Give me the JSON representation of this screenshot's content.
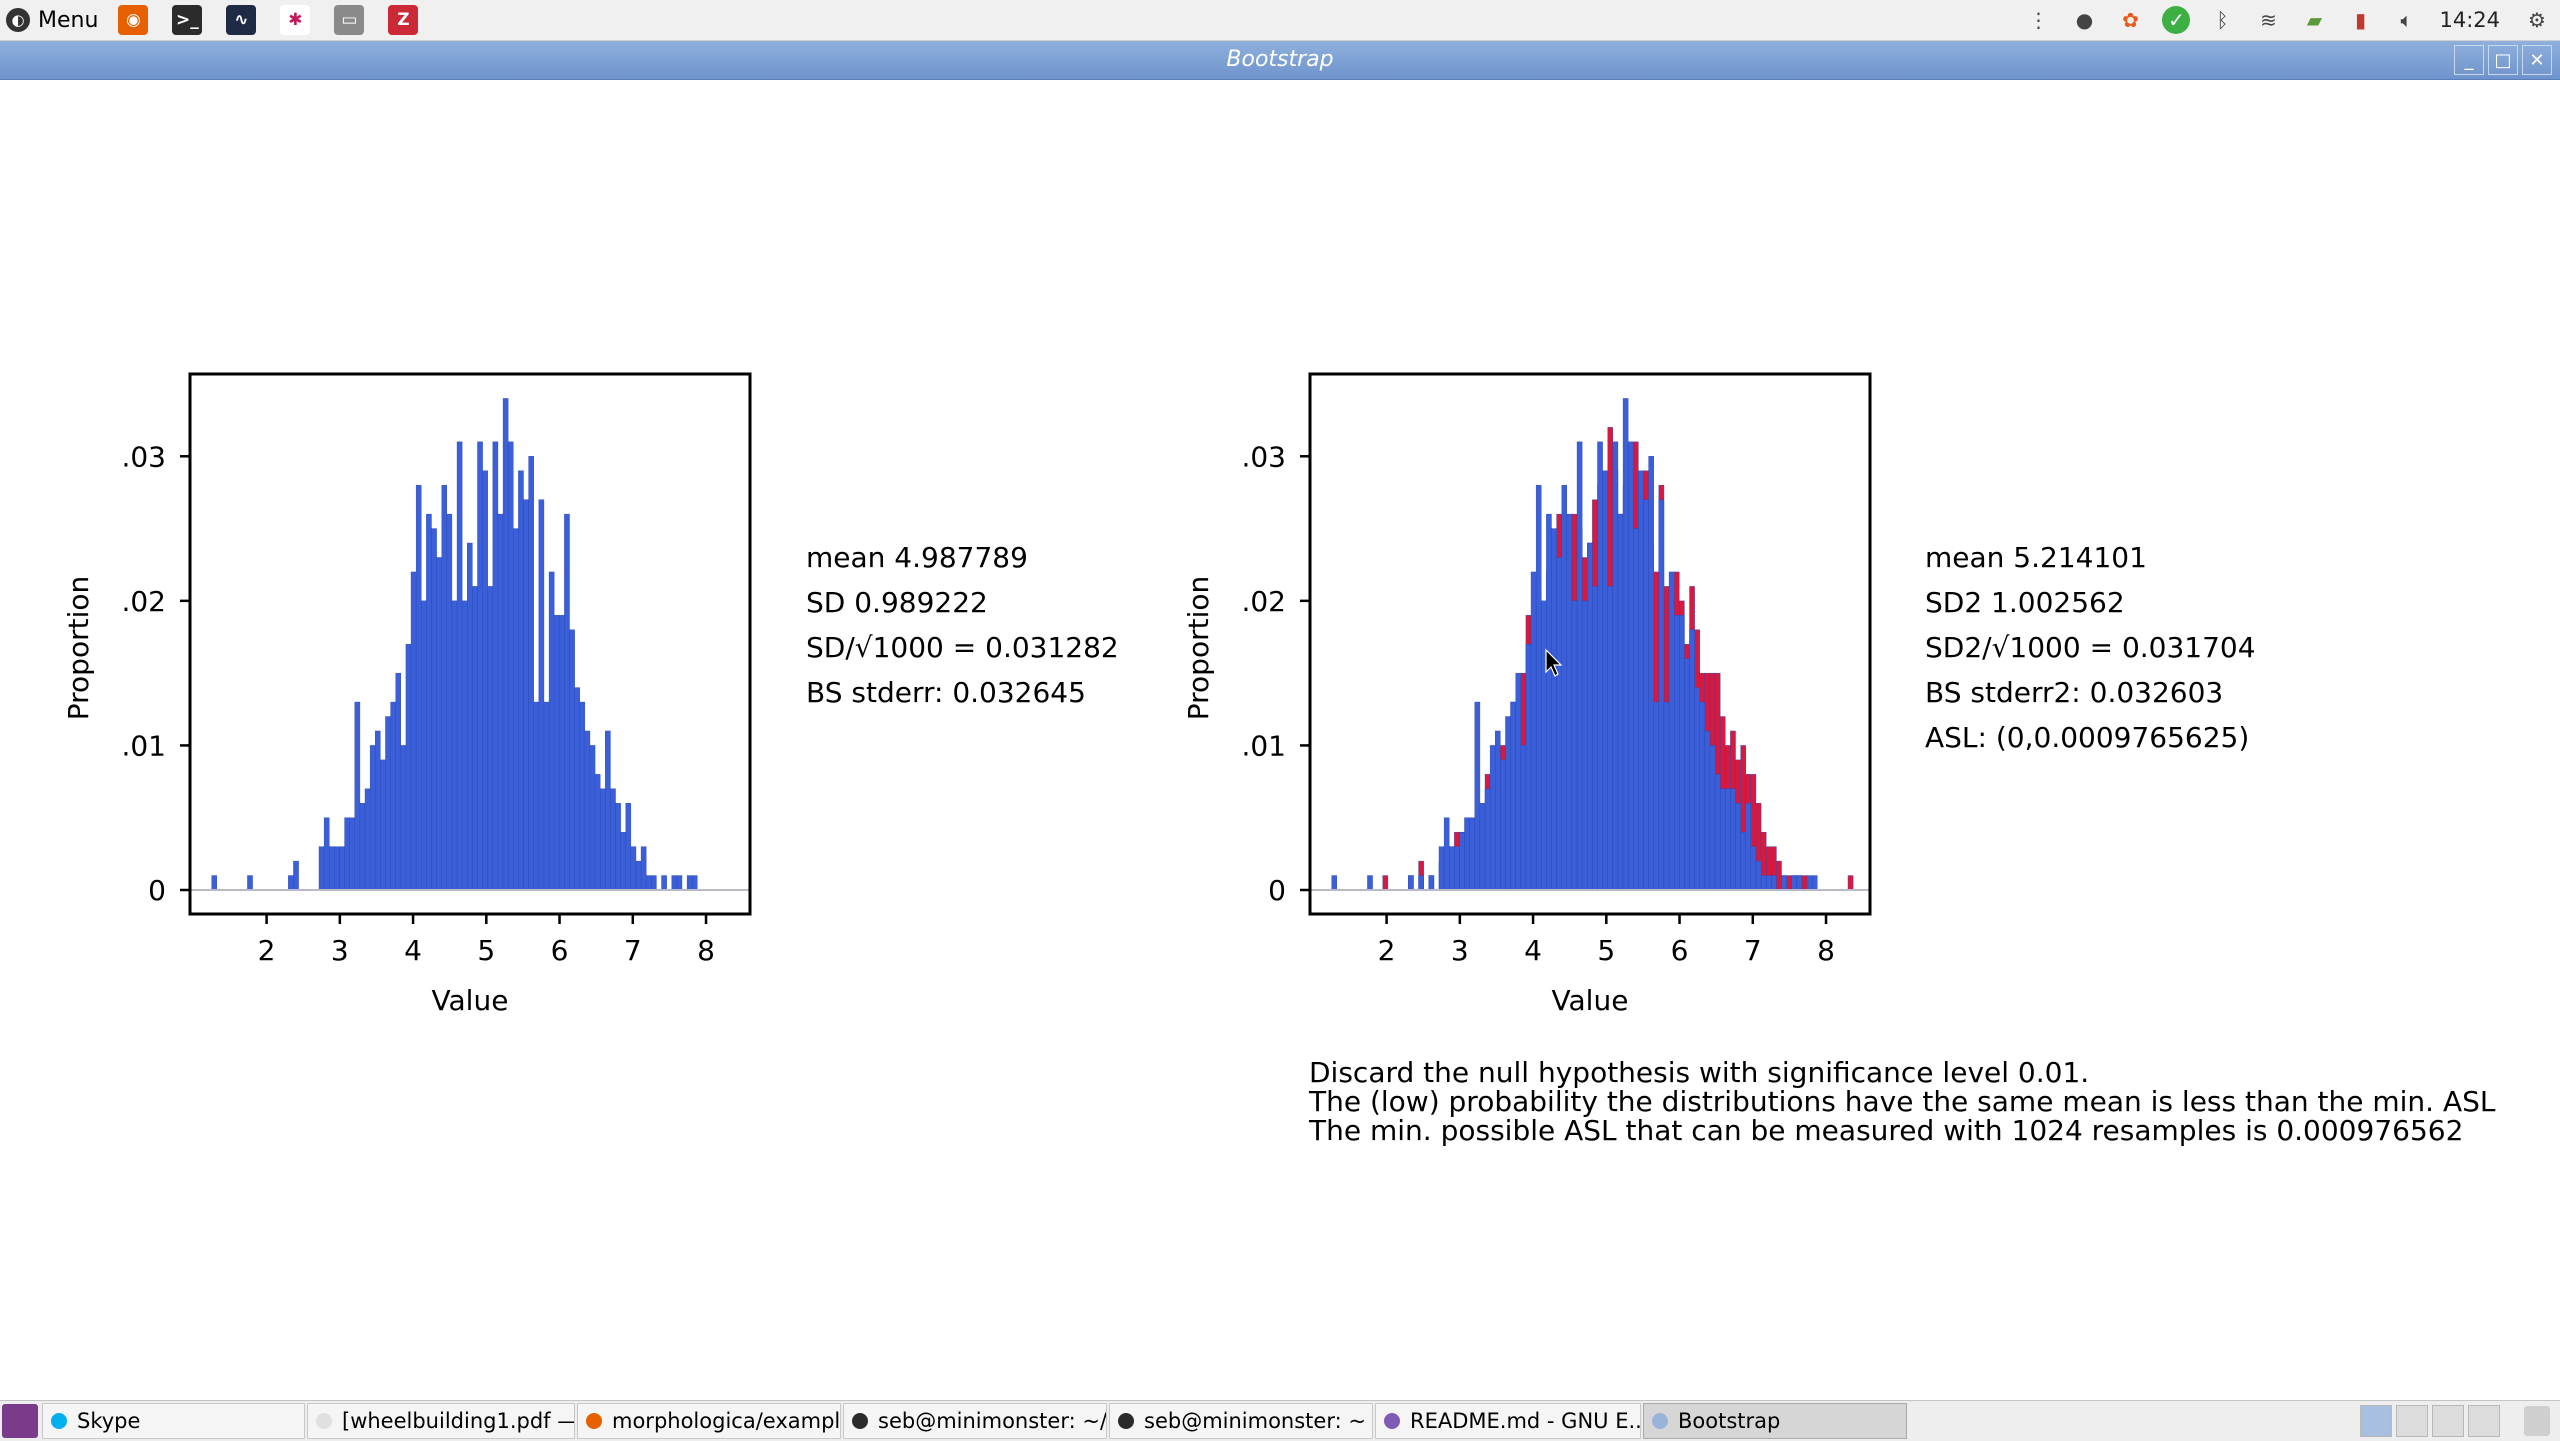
{
  "top_panel": {
    "menu_label": "Menu",
    "launchers": [
      {
        "name": "firefox-icon",
        "color": "#e66000",
        "glyph": "◉"
      },
      {
        "name": "terminal-icon",
        "color": "#2b2b2b",
        "glyph": ">_"
      },
      {
        "name": "system-monitor-icon",
        "color": "#1f2a44",
        "glyph": "∿"
      },
      {
        "name": "slack-icon",
        "color": "#ffffff",
        "glyph": "✱"
      },
      {
        "name": "files-icon",
        "color": "#8a8a8a",
        "glyph": "▭"
      },
      {
        "name": "zotero-icon",
        "color": "#cc2936",
        "glyph": "Z"
      }
    ],
    "clock": "14:24"
  },
  "window": {
    "title": "Bootstrap"
  },
  "left_stats": {
    "mean": "mean 4.987789",
    "sd": "SD 0.989222",
    "sd_sqrt": "SD/√1000 = 0.031282",
    "bs_stderr": "BS stderr: 0.032645"
  },
  "right_stats": {
    "mean": "mean 5.214101",
    "sd": "SD2 1.002562",
    "sd_sqrt": "SD2/√1000 = 0.031704",
    "bs_stderr": "BS stderr2: 0.032603",
    "asl": "ASL: (0,0.0009765625)"
  },
  "conclusion": {
    "line1": "Discard the null hypothesis with significance level 0.01.",
    "line2": "The (low) probability the distributions have the same mean is less than the min. ASL",
    "line3": "The min. possible ASL that can be measured with 1024 resamples is 0.000976562"
  },
  "taskbar": {
    "tasks": [
      {
        "label": "Skype",
        "color": "#00aff0"
      },
      {
        "label": "[wheelbuilding1.pdf —...",
        "color": "#e0e0e0"
      },
      {
        "label": "morphologica/exampl...",
        "color": "#e66000"
      },
      {
        "label": "seb@minimonster: ~/...",
        "color": "#2b2b2b"
      },
      {
        "label": "seb@minimonster: ~",
        "color": "#2b2b2b"
      },
      {
        "label": "README.md - GNU E...",
        "color": "#7f5ab6"
      },
      {
        "label": "Bootstrap",
        "color": "#9bb3d9"
      }
    ]
  },
  "chart_data": [
    {
      "type": "bar",
      "xlabel": "Value",
      "ylabel": "Proportion",
      "xlim": [
        1.2,
        8.3
      ],
      "ylim": [
        0,
        0.035
      ],
      "xticks": [
        2,
        3,
        4,
        5,
        6,
        7,
        8
      ],
      "xtick_labels": [
        "2",
        "3",
        "4",
        "5",
        "6",
        "7",
        "8"
      ],
      "yticks": [
        0,
        0.01,
        0.02,
        0.03
      ],
      "ytick_labels": [
        "0",
        ".01",
        ".02",
        ".03"
      ],
      "bin_start": 1.25,
      "bin_width": 0.0698,
      "series": [
        {
          "color": "#3a5fd9",
          "values": [
            0.001,
            0,
            0,
            0,
            0,
            0,
            0,
            0.001,
            0,
            0,
            0,
            0,
            0,
            0,
            0,
            0.001,
            0.002,
            0,
            0,
            0,
            0,
            0.003,
            0.005,
            0.003,
            0.003,
            0.003,
            0.005,
            0.005,
            0.013,
            0.006,
            0.007,
            0.01,
            0.011,
            0.009,
            0.012,
            0.013,
            0.015,
            0.01,
            0.017,
            0.022,
            0.028,
            0.02,
            0.026,
            0.025,
            0.023,
            0.028,
            0.026,
            0.02,
            0.031,
            0.02,
            0.024,
            0.021,
            0.031,
            0.029,
            0.021,
            0.031,
            0.026,
            0.034,
            0.031,
            0.025,
            0.029,
            0.027,
            0.03,
            0.013,
            0.027,
            0.013,
            0.022,
            0.019,
            0.019,
            0.026,
            0.018,
            0.014,
            0.013,
            0.011,
            0.01,
            0.008,
            0.007,
            0.011,
            0.007,
            0.006,
            0.004,
            0.006,
            0.003,
            0.002,
            0.003,
            0.001,
            0.001,
            0,
            0.001,
            0,
            0.001,
            0.001,
            0,
            0.001,
            0.001
          ]
        }
      ]
    },
    {
      "type": "bar",
      "xlabel": "Value",
      "ylabel": "Proportion",
      "xlim": [
        1.2,
        8.3
      ],
      "ylim": [
        0,
        0.035
      ],
      "xticks": [
        2,
        3,
        4,
        5,
        6,
        7,
        8
      ],
      "xtick_labels": [
        "2",
        "3",
        "4",
        "5",
        "6",
        "7",
        "8"
      ],
      "yticks": [
        0,
        0.01,
        0.02,
        0.03
      ],
      "ytick_labels": [
        "0",
        ".01",
        ".02",
        ".03"
      ],
      "bin_start": 1.25,
      "bin_width": 0.0698,
      "series": [
        {
          "color": "#d7193f",
          "values": [
            0,
            0,
            0,
            0,
            0,
            0,
            0,
            0,
            0,
            0,
            0.001,
            0,
            0,
            0,
            0,
            0.001,
            0,
            0.002,
            0,
            0.001,
            0,
            0.002,
            0.003,
            0.003,
            0.004,
            0.004,
            0.005,
            0.004,
            0.005,
            0.006,
            0.008,
            0.007,
            0.007,
            0.01,
            0.009,
            0.013,
            0.013,
            0.015,
            0.019,
            0.015,
            0.021,
            0.018,
            0.022,
            0.019,
            0.026,
            0.024,
            0.023,
            0.026,
            0.025,
            0.023,
            0.024,
            0.027,
            0.028,
            0.026,
            0.032,
            0.029,
            0.026,
            0.028,
            0.025,
            0.031,
            0.027,
            0.029,
            0.024,
            0.022,
            0.028,
            0.021,
            0.02,
            0.022,
            0.02,
            0.017,
            0.021,
            0.018,
            0.015,
            0.015,
            0.015,
            0.015,
            0.012,
            0.01,
            0.011,
            0.009,
            0.01,
            0.008,
            0.008,
            0.006,
            0.004,
            0.003,
            0.003,
            0.002,
            0.001,
            0.001,
            0.001,
            0.001,
            0.001,
            0,
            0,
            0,
            0,
            0,
            0,
            0,
            0,
            0.001
          ]
        },
        {
          "color": "#3a5fd9",
          "values": [
            0.001,
            0,
            0,
            0,
            0,
            0,
            0,
            0.001,
            0,
            0,
            0,
            0,
            0,
            0,
            0,
            0.001,
            0,
            0.001,
            0,
            0.001,
            0,
            0.003,
            0.005,
            0.003,
            0.003,
            0.004,
            0.005,
            0.005,
            0.013,
            0.006,
            0.007,
            0.01,
            0.011,
            0.009,
            0.012,
            0.013,
            0.015,
            0.01,
            0.017,
            0.022,
            0.028,
            0.02,
            0.026,
            0.025,
            0.023,
            0.028,
            0.026,
            0.02,
            0.031,
            0.02,
            0.024,
            0.021,
            0.031,
            0.029,
            0.021,
            0.031,
            0.026,
            0.034,
            0.031,
            0.025,
            0.029,
            0.027,
            0.03,
            0.013,
            0.027,
            0.013,
            0.022,
            0.019,
            0.019,
            0.016,
            0.018,
            0.014,
            0.013,
            0.011,
            0.01,
            0.008,
            0.007,
            0.007,
            0.007,
            0.006,
            0.004,
            0.006,
            0.003,
            0.002,
            0.001,
            0.001,
            0.001,
            0,
            0.001,
            0,
            0.001,
            0.001,
            0,
            0.001,
            0.001
          ]
        }
      ]
    }
  ]
}
